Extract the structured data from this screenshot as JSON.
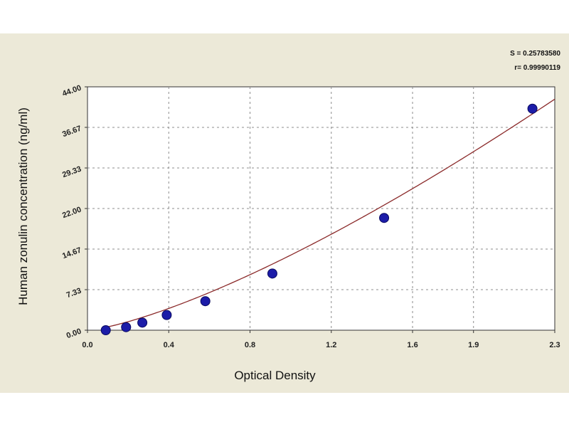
{
  "chart_data": {
    "type": "scatter",
    "xlabel": "Optical Density",
    "ylabel": "Human zonulin concentration (ng/ml)",
    "xlim": [
      0.0,
      2.3
    ],
    "ylim": [
      0.0,
      44.0
    ],
    "x_ticks": [
      {
        "value": 0.0,
        "label": "0.0"
      },
      {
        "value": 0.4,
        "label": "0.4"
      },
      {
        "value": 0.8,
        "label": "0.8"
      },
      {
        "value": 1.2,
        "label": "1.2"
      },
      {
        "value": 1.6,
        "label": "1.6"
      },
      {
        "value": 1.9,
        "label": "1.9"
      },
      {
        "value": 2.3,
        "label": "2.3"
      }
    ],
    "y_ticks": [
      {
        "value": 0.0,
        "label": "0.00"
      },
      {
        "value": 7.33,
        "label": "7.33"
      },
      {
        "value": 14.67,
        "label": "14.67"
      },
      {
        "value": 22.0,
        "label": "22.00"
      },
      {
        "value": 29.33,
        "label": "29.33"
      },
      {
        "value": 36.67,
        "label": "36.67"
      },
      {
        "value": 44.0,
        "label": "44.00"
      }
    ],
    "grid": true,
    "series": [
      {
        "points": [
          {
            "x": 0.09,
            "y": 0.0
          },
          {
            "x": 0.19,
            "y": 0.55
          },
          {
            "x": 0.27,
            "y": 1.37
          },
          {
            "x": 0.39,
            "y": 2.75
          },
          {
            "x": 0.58,
            "y": 5.25
          },
          {
            "x": 0.91,
            "y": 10.25
          },
          {
            "x": 1.46,
            "y": 20.3
          },
          {
            "x": 2.19,
            "y": 40.05
          }
        ],
        "marker_color": "#1c1ca8",
        "marker_edge": "#0a0a60"
      }
    ],
    "fit_curve": {
      "type": "power",
      "a": 13.57,
      "b": 1.35,
      "x_start": 0.09,
      "x_end": 2.3,
      "color": "#8b2a2a"
    },
    "annotations": [
      {
        "text": "S = 0.25783580",
        "position": "top-right"
      },
      {
        "text": "r= 0.99990119",
        "position": "top-right"
      }
    ],
    "plot_background": "#ffffff",
    "frame_background": "#ece9d8",
    "grid_color": "#8c8c8c"
  }
}
